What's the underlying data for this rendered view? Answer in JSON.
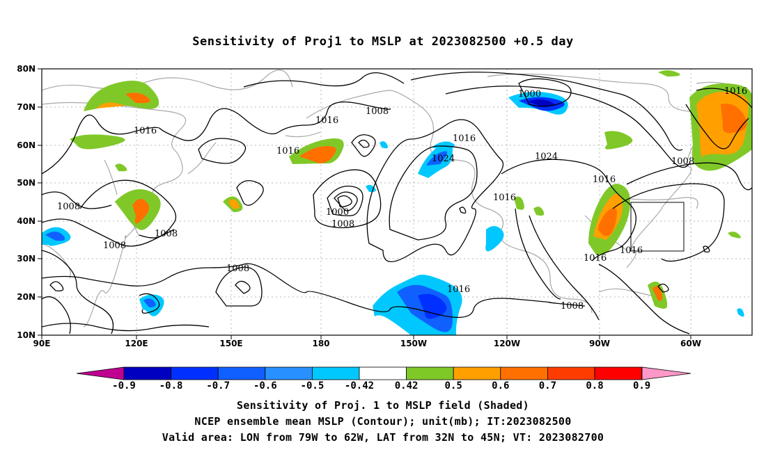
{
  "title": "Sensitivity of Proj1 to MSLP at 2023082500 +0.5 day",
  "map": {
    "lon_labels": [
      "90E",
      "120E",
      "150E",
      "180",
      "150W",
      "120W",
      "90W",
      "60W"
    ],
    "lat_labels": [
      "80N",
      "70N",
      "60N",
      "50N",
      "40N",
      "30N",
      "20N",
      "10N"
    ],
    "contour_labels": [
      {
        "text": "1000"
      },
      {
        "text": "1016"
      },
      {
        "text": "1008"
      },
      {
        "text": "1016"
      },
      {
        "text": "1016"
      },
      {
        "text": "1016"
      },
      {
        "text": "1024"
      },
      {
        "text": "1024"
      },
      {
        "text": "1016"
      },
      {
        "text": "1008"
      },
      {
        "text": "1008"
      },
      {
        "text": "1008"
      },
      {
        "text": "1008"
      },
      {
        "text": "1000"
      },
      {
        "text": "1008"
      },
      {
        "text": "1016"
      },
      {
        "text": "1016"
      },
      {
        "text": "1016"
      },
      {
        "text": "1016"
      },
      {
        "text": "1016"
      },
      {
        "text": "1008"
      }
    ],
    "valid_area": {
      "lon_min_w": 79,
      "lon_max_w": 62,
      "lat_min_n": 32,
      "lat_max_n": 45
    }
  },
  "colorbar": {
    "labels": [
      "-0.9",
      "-0.8",
      "-0.7",
      "-0.6",
      "-0.5",
      "-0.42",
      "0.42",
      "0.5",
      "0.6",
      "0.7",
      "0.8",
      "0.9"
    ],
    "colors": [
      "#0000c0",
      "#0030ff",
      "#1060ff",
      "#2890ff",
      "#00c8ff",
      "#ffffff",
      "#80c828",
      "#ffa000",
      "#ff7000",
      "#ff3c00",
      "#ff0000"
    ],
    "low_extend_color": "#c00090",
    "high_extend_color": "#ff98c8"
  },
  "captions": {
    "line1": "Sensitivity of Proj. 1 to MSLP field (Shaded)",
    "line2": "NCEP ensemble mean MSLP (Contour); unit(mb); IT:2023082500",
    "line3": "Valid area: LON from 79W to 62W, LAT from 32N to 45N; VT: 2023082700"
  }
}
